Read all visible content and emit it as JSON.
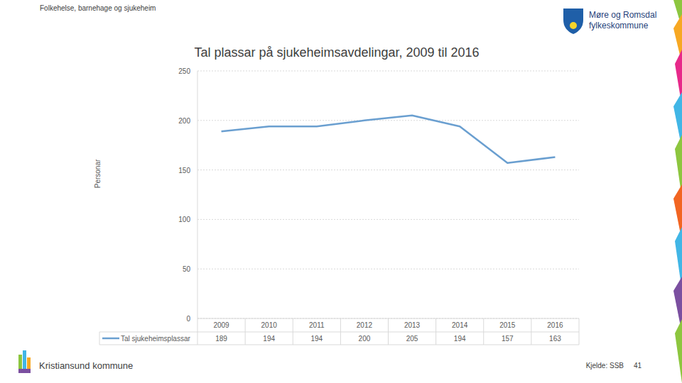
{
  "header": {
    "section": "Folkehelse, barnehage og sjukeheim",
    "logo_line1": "Møre og Romsdal",
    "logo_line2": "fylkeskommune"
  },
  "chart_data": {
    "type": "line",
    "title": "Tal plassar på sjukeheimsavdelingar, 2009 til 2016",
    "y_label": "Personar",
    "categories": [
      "2009",
      "2010",
      "2011",
      "2012",
      "2013",
      "2014",
      "2015",
      "2016"
    ],
    "series": [
      {
        "name": "Tal sjukeheimsplassar",
        "color": "#6a9fd0",
        "values": [
          189,
          194,
          194,
          200,
          205,
          194,
          157,
          163
        ]
      }
    ],
    "ylim": [
      0,
      250
    ],
    "yticks": [
      0,
      50,
      100,
      150,
      200,
      250
    ],
    "grid": true,
    "legend": "bottom",
    "data_labels": true
  },
  "footer": {
    "municipality": "Kristiansund kommune",
    "source": "Kjelde: SSB",
    "page": 41
  }
}
